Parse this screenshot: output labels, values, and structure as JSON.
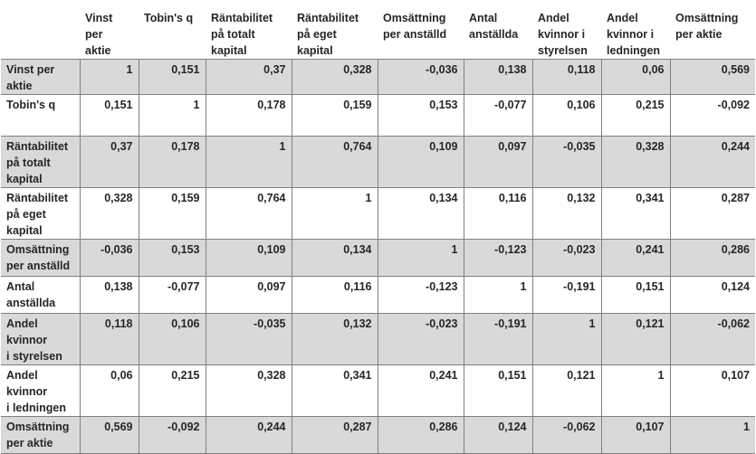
{
  "columns": [
    "Vinst\nper\naktie",
    "Tobin's q",
    "Räntabilitet\npå totalt\nkapital",
    "Räntabilitet\npå eget\nkapital",
    "Omsättning\nper anställd",
    "Antal\nanställda",
    "Andel\nkvinnor i\nstyrelsen",
    "Andel\nkvinnor i\nledningen",
    "Omsättning\nper aktie"
  ],
  "rows": [
    {
      "label": "Vinst per\naktie",
      "values": [
        "1",
        "0,151",
        "0,37",
        "0,328",
        "-0,036",
        "0,138",
        "0,118",
        "0,06",
        "0,569"
      ]
    },
    {
      "label": "Tobin's q",
      "values": [
        "0,151",
        "1",
        "0,178",
        "0,159",
        "0,153",
        "-0,077",
        "0,106",
        "0,215",
        "-0,092"
      ]
    },
    {
      "label": "Räntabilitet\npå totalt\nkapital",
      "values": [
        "0,37",
        "0,178",
        "1",
        "0,764",
        "0,109",
        "0,097",
        "-0,035",
        "0,328",
        "0,244"
      ]
    },
    {
      "label": "Räntabilitet\npå eget\nkapital",
      "values": [
        "0,328",
        "0,159",
        "0,764",
        "1",
        "0,134",
        "0,116",
        "0,132",
        "0,341",
        "0,287"
      ]
    },
    {
      "label": "Omsättning\nper anställd",
      "values": [
        "-0,036",
        "0,153",
        "0,109",
        "0,134",
        "1",
        "-0,123",
        "-0,023",
        "0,241",
        "0,286"
      ]
    },
    {
      "label": "Antal\nanställda",
      "values": [
        "0,138",
        "-0,077",
        "0,097",
        "0,116",
        "-0,123",
        "1",
        "-0,191",
        "0,151",
        "0,124"
      ]
    },
    {
      "label": "Andel\nkvinnor\ni styrelsen",
      "values": [
        "0,118",
        "0,106",
        "-0,035",
        "0,132",
        "-0,023",
        "-0,191",
        "1",
        "0,121",
        "-0,062"
      ]
    },
    {
      "label": "Andel\nkvinnor\ni ledningen",
      "values": [
        "0,06",
        "0,215",
        "0,328",
        "0,341",
        "0,241",
        "0,151",
        "0,121",
        "1",
        "0,107"
      ]
    },
    {
      "label": "Omsättning\nper aktie",
      "values": [
        "0,569",
        "-0,092",
        "0,244",
        "0,287",
        "0,286",
        "0,124",
        "-0,062",
        "0,107",
        "1"
      ]
    }
  ]
}
